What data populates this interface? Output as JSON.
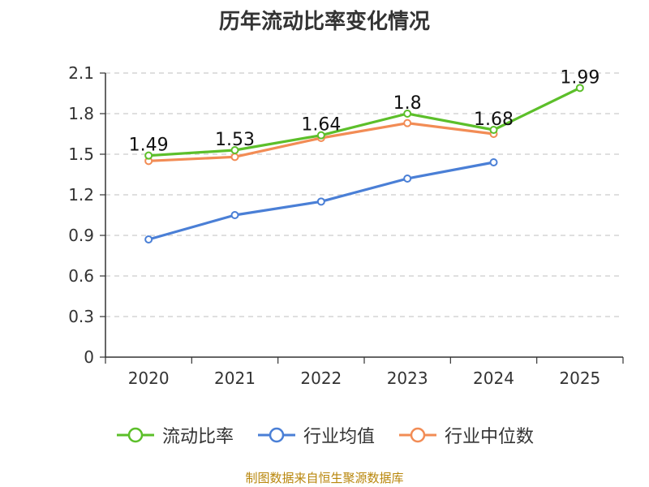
{
  "chart_data": {
    "type": "line",
    "title": "历年流动比率变化情况",
    "categories": [
      "2020",
      "2021",
      "2022",
      "2023",
      "2024",
      "2025"
    ],
    "ylim": [
      0,
      2.1
    ],
    "yticks": [
      "0",
      "0.3",
      "0.6",
      "0.9",
      "1.2",
      "1.5",
      "1.8",
      "2.1"
    ],
    "grid": true,
    "legend_position": "bottom",
    "series": [
      {
        "name": "流动比率",
        "color": "#5cbf2a",
        "values": [
          1.49,
          1.53,
          1.64,
          1.8,
          1.68,
          1.99
        ],
        "labels": [
          "1.49",
          "1.53",
          "1.64",
          "1.8",
          "1.68",
          "1.99"
        ]
      },
      {
        "name": "行业均值",
        "color": "#4a7fd6",
        "values": [
          0.87,
          1.05,
          1.15,
          1.32,
          1.44,
          null
        ]
      },
      {
        "name": "行业中位数",
        "color": "#f28c55",
        "values": [
          1.45,
          1.48,
          1.62,
          1.73,
          1.65,
          null
        ]
      }
    ],
    "source": "制图数据来自恒生聚源数据库"
  }
}
